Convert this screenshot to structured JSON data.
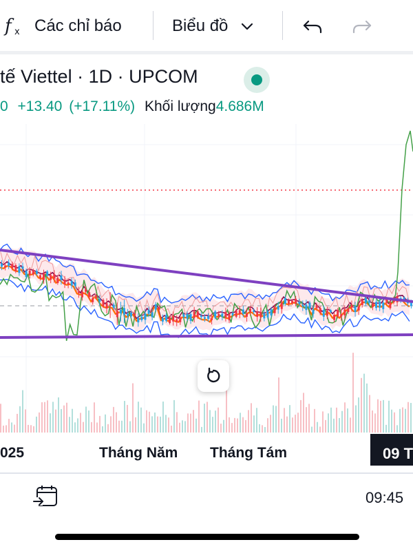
{
  "toolbar": {
    "indicators_icon": "function-fx-icon",
    "indicators_label": "Các chỉ báo",
    "chart_type_label": "Biểu đồ",
    "undo_icon": "undo-icon",
    "redo_icon": "redo-icon"
  },
  "header": {
    "title": "tế Viettel · 1D · UPCOM",
    "change_prefix": "0",
    "change": "+13.40",
    "change_pct": "(+17.11%)",
    "volume_label": "Khối lượng",
    "volume_value": "4.686M"
  },
  "time_axis": {
    "labels": [
      "025",
      "Tháng Năm",
      "Tháng Tám"
    ],
    "crosshair": "09 T"
  },
  "bottom_bar": {
    "date_range_icon": "calendar-goto-icon",
    "time": "09:45"
  },
  "colors": {
    "up": "#089981",
    "down": "#f23645",
    "trendline": "#7e40c0",
    "price_line": "#f23645",
    "bollinger": "#2962ff",
    "ema_fast": "#ff6d00",
    "ema_slow": "#880e4f",
    "lagging_span": "#43a047"
  },
  "chart_data": {
    "type": "line",
    "title": "",
    "xlabel": "",
    "ylabel": "",
    "x": [
      "025",
      "Tháng Năm",
      "Tháng Tám",
      "09 T"
    ],
    "series": []
  }
}
